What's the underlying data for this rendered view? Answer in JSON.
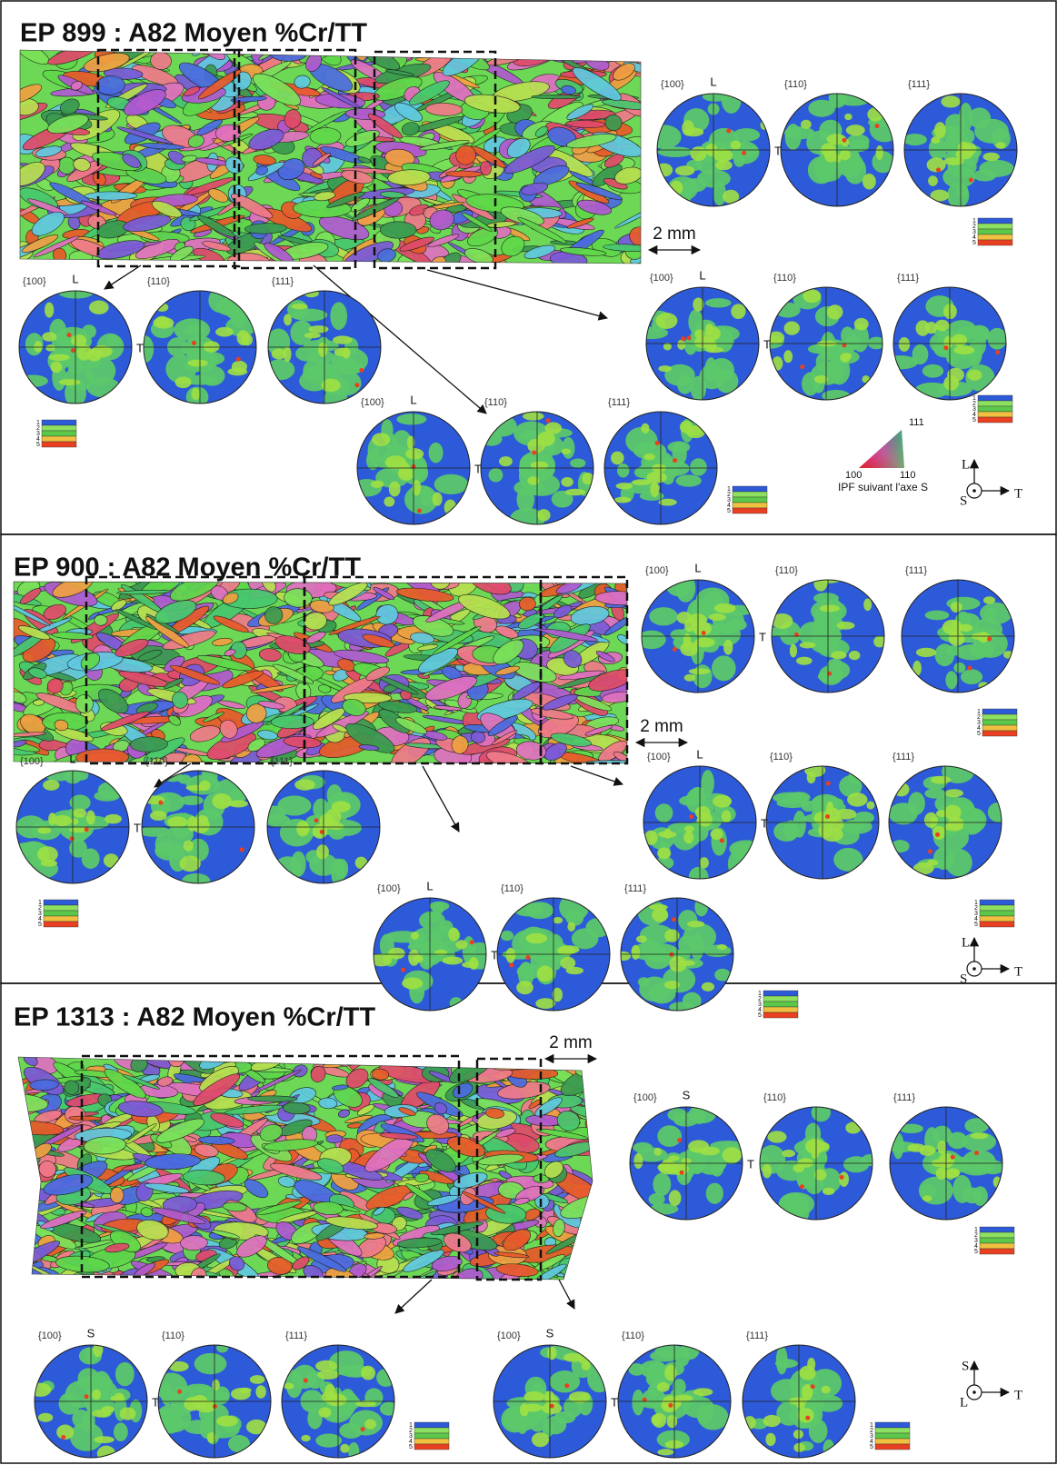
{
  "panels": [
    {
      "title": "EP 899 : A82 Moyen %Cr/TT",
      "scale_bar": "2 mm",
      "pole_figures": [
        {
          "labels": [
            "{100}",
            "{110}",
            "{111}"
          ],
          "top_axis": "L",
          "side_axis": "T",
          "legend": [
            "1",
            "2",
            "3",
            "4",
            "5"
          ]
        },
        {
          "labels": [
            "{100}",
            "{110}",
            "{111}"
          ],
          "top_axis": "L",
          "side_axis": "T",
          "legend": [
            "1",
            "2",
            "3",
            "4",
            "5"
          ]
        },
        {
          "labels": [
            "{100}",
            "{110}",
            "{111}"
          ],
          "top_axis": "L",
          "side_axis": "T",
          "legend": [
            "1",
            "2",
            "3",
            "4",
            "5"
          ]
        },
        {
          "labels": [
            "{100}",
            "{110}",
            "{111}"
          ],
          "top_axis": "L",
          "side_axis": "T",
          "legend": [
            "1",
            "2",
            "3",
            "4",
            "5"
          ]
        }
      ],
      "ipf": {
        "corners": [
          "111",
          "100",
          "110"
        ],
        "caption": "IPF suivant l'axe S"
      },
      "triad": {
        "up": "L",
        "center": "S",
        "right": "T"
      }
    },
    {
      "title": "EP 900 : A82 Moyen %Cr/TT",
      "scale_bar": "2 mm",
      "pole_figures": [
        {
          "labels": [
            "{100}",
            "{110}",
            "{111}"
          ],
          "top_axis": "L",
          "side_axis": "T",
          "legend": [
            "1",
            "2",
            "3",
            "4",
            "5"
          ]
        },
        {
          "labels": [
            "{100}",
            "{110}",
            "{111}"
          ],
          "top_axis": "L",
          "side_axis": "T",
          "legend": [
            "1",
            "2",
            "3",
            "4",
            "5"
          ]
        },
        {
          "labels": [
            "{100}",
            "{110}",
            "{111}"
          ],
          "top_axis": "L",
          "side_axis": "T",
          "legend": [
            "1",
            "2",
            "3",
            "4",
            "5"
          ]
        },
        {
          "labels": [
            "{100}",
            "{110}",
            "{111}"
          ],
          "top_axis": "L",
          "side_axis": "T",
          "legend": [
            "1",
            "2",
            "3",
            "4",
            "5"
          ]
        }
      ],
      "triad": {
        "up": "L",
        "center": "S",
        "right": "T"
      }
    },
    {
      "title": "EP 1313 : A82 Moyen %Cr/TT",
      "scale_bar": "2 mm",
      "pole_figures": [
        {
          "labels": [
            "{100}",
            "{110}",
            "{111}"
          ],
          "top_axis": "S",
          "side_axis": "T",
          "legend": [
            "1",
            "2",
            "3",
            "4",
            "5"
          ]
        },
        {
          "labels": [
            "{100}",
            "{110}",
            "{111}"
          ],
          "top_axis": "S",
          "side_axis": "T",
          "legend": [
            "1",
            "2",
            "3",
            "4",
            "5"
          ]
        },
        {
          "labels": [
            "{100}",
            "{110}",
            "{111}"
          ],
          "top_axis": "S",
          "side_axis": "T",
          "legend": [
            "1",
            "2",
            "3",
            "4",
            "5"
          ]
        }
      ],
      "triad": {
        "up": "S",
        "center": "L",
        "right": "T"
      }
    }
  ]
}
